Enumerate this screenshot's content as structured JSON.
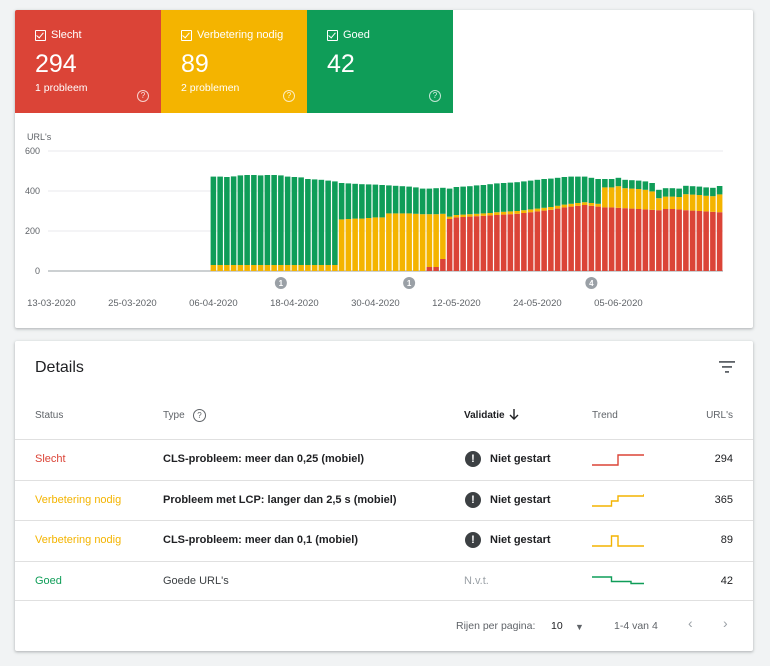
{
  "summary_tiles": [
    {
      "label": "Slecht",
      "count": "294",
      "sub": "1 probleem",
      "color": "#db4437"
    },
    {
      "label": "Verbetering nodig",
      "count": "89",
      "sub": "2 problemen",
      "color": "#f4b400"
    },
    {
      "label": "Goed",
      "count": "42",
      "sub": "",
      "color": "#0f9d58"
    }
  ],
  "chart_data": {
    "type": "bar",
    "stacked": true,
    "ylabel": "URL's",
    "ylim": [
      0,
      600
    ],
    "y_ticks": [
      "600",
      "400",
      "200",
      "0"
    ],
    "x_ticks": [
      "13-03-2020",
      "25-03-2020",
      "06-04-2020",
      "18-04-2020",
      "30-04-2020",
      "12-05-2020",
      "24-05-2020",
      "05-06-2020"
    ],
    "annotations": [
      "1",
      "1",
      "4"
    ],
    "colors": {
      "slecht": "#db4437",
      "verbetering": "#f4b400",
      "goed": "#0f9d58"
    },
    "series_keys": [
      "slecht",
      "verbetering",
      "goed"
    ],
    "first_date": "13-03-2020",
    "empty_days": 24,
    "days": [
      {
        "slecht": 0,
        "verbetering": 30,
        "goed": 442
      },
      {
        "slecht": 0,
        "verbetering": 30,
        "goed": 442
      },
      {
        "slecht": 0,
        "verbetering": 30,
        "goed": 440
      },
      {
        "slecht": 0,
        "verbetering": 30,
        "goed": 443
      },
      {
        "slecht": 0,
        "verbetering": 30,
        "goed": 448
      },
      {
        "slecht": 0,
        "verbetering": 30,
        "goed": 450
      },
      {
        "slecht": 0,
        "verbetering": 30,
        "goed": 450
      },
      {
        "slecht": 0,
        "verbetering": 30,
        "goed": 448
      },
      {
        "slecht": 0,
        "verbetering": 30,
        "goed": 450
      },
      {
        "slecht": 0,
        "verbetering": 30,
        "goed": 450
      },
      {
        "slecht": 0,
        "verbetering": 30,
        "goed": 448
      },
      {
        "slecht": 0,
        "verbetering": 30,
        "goed": 442
      },
      {
        "slecht": 0,
        "verbetering": 30,
        "goed": 440
      },
      {
        "slecht": 0,
        "verbetering": 30,
        "goed": 438
      },
      {
        "slecht": 0,
        "verbetering": 30,
        "goed": 430
      },
      {
        "slecht": 0,
        "verbetering": 30,
        "goed": 428
      },
      {
        "slecht": 0,
        "verbetering": 30,
        "goed": 426
      },
      {
        "slecht": 0,
        "verbetering": 30,
        "goed": 422
      },
      {
        "slecht": 0,
        "verbetering": 30,
        "goed": 418
      },
      {
        "slecht": 0,
        "verbetering": 258,
        "goed": 182
      },
      {
        "slecht": 0,
        "verbetering": 260,
        "goed": 178
      },
      {
        "slecht": 0,
        "verbetering": 262,
        "goed": 174
      },
      {
        "slecht": 0,
        "verbetering": 262,
        "goed": 172
      },
      {
        "slecht": 0,
        "verbetering": 265,
        "goed": 168
      },
      {
        "slecht": 0,
        "verbetering": 268,
        "goed": 164
      },
      {
        "slecht": 0,
        "verbetering": 268,
        "goed": 162
      },
      {
        "slecht": 0,
        "verbetering": 288,
        "goed": 140
      },
      {
        "slecht": 0,
        "verbetering": 288,
        "goed": 138
      },
      {
        "slecht": 0,
        "verbetering": 288,
        "goed": 136
      },
      {
        "slecht": 0,
        "verbetering": 288,
        "goed": 134
      },
      {
        "slecht": 0,
        "verbetering": 286,
        "goed": 132
      },
      {
        "slecht": 0,
        "verbetering": 284,
        "goed": 128
      },
      {
        "slecht": 20,
        "verbetering": 264,
        "goed": 128
      },
      {
        "slecht": 20,
        "verbetering": 264,
        "goed": 130
      },
      {
        "slecht": 60,
        "verbetering": 226,
        "goed": 130
      },
      {
        "slecht": 260,
        "verbetering": 12,
        "goed": 140
      },
      {
        "slecht": 268,
        "verbetering": 12,
        "goed": 140
      },
      {
        "slecht": 270,
        "verbetering": 12,
        "goed": 140
      },
      {
        "slecht": 272,
        "verbetering": 12,
        "goed": 140
      },
      {
        "slecht": 274,
        "verbetering": 12,
        "goed": 142
      },
      {
        "slecht": 276,
        "verbetering": 12,
        "goed": 142
      },
      {
        "slecht": 278,
        "verbetering": 12,
        "goed": 144
      },
      {
        "slecht": 280,
        "verbetering": 14,
        "goed": 144
      },
      {
        "slecht": 282,
        "verbetering": 14,
        "goed": 144
      },
      {
        "slecht": 284,
        "verbetering": 14,
        "goed": 144
      },
      {
        "slecht": 286,
        "verbetering": 14,
        "goed": 144
      },
      {
        "slecht": 290,
        "verbetering": 14,
        "goed": 144
      },
      {
        "slecht": 294,
        "verbetering": 14,
        "goed": 144
      },
      {
        "slecht": 298,
        "verbetering": 14,
        "goed": 144
      },
      {
        "slecht": 302,
        "verbetering": 14,
        "goed": 144
      },
      {
        "slecht": 306,
        "verbetering": 14,
        "goed": 142
      },
      {
        "slecht": 312,
        "verbetering": 14,
        "goed": 140
      },
      {
        "slecht": 318,
        "verbetering": 14,
        "goed": 138
      },
      {
        "slecht": 322,
        "verbetering": 14,
        "goed": 136
      },
      {
        "slecht": 326,
        "verbetering": 14,
        "goed": 132
      },
      {
        "slecht": 330,
        "verbetering": 14,
        "goed": 128
      },
      {
        "slecht": 326,
        "verbetering": 14,
        "goed": 126
      },
      {
        "slecht": 322,
        "verbetering": 14,
        "goed": 124
      },
      {
        "slecht": 318,
        "verbetering": 100,
        "goed": 42
      },
      {
        "slecht": 318,
        "verbetering": 100,
        "goed": 42
      },
      {
        "slecht": 316,
        "verbetering": 108,
        "goed": 42
      },
      {
        "slecht": 314,
        "verbetering": 100,
        "goed": 42
      },
      {
        "slecht": 312,
        "verbetering": 100,
        "goed": 42
      },
      {
        "slecht": 310,
        "verbetering": 100,
        "goed": 42
      },
      {
        "slecht": 308,
        "verbetering": 98,
        "goed": 42
      },
      {
        "slecht": 306,
        "verbetering": 92,
        "goed": 42
      },
      {
        "slecht": 304,
        "verbetering": 60,
        "goed": 42
      },
      {
        "slecht": 310,
        "verbetering": 62,
        "goed": 42
      },
      {
        "slecht": 310,
        "verbetering": 62,
        "goed": 42
      },
      {
        "slecht": 308,
        "verbetering": 62,
        "goed": 42
      },
      {
        "slecht": 304,
        "verbetering": 80,
        "goed": 42
      },
      {
        "slecht": 302,
        "verbetering": 80,
        "goed": 42
      },
      {
        "slecht": 300,
        "verbetering": 80,
        "goed": 42
      },
      {
        "slecht": 298,
        "verbetering": 78,
        "goed": 42
      },
      {
        "slecht": 296,
        "verbetering": 78,
        "goed": 42
      },
      {
        "slecht": 294,
        "verbetering": 89,
        "goed": 42
      }
    ]
  },
  "details": {
    "title": "Details",
    "headers": {
      "status": "Status",
      "type": "Type",
      "validatie": "Validatie",
      "trend": "Trend",
      "urls": "URL's"
    },
    "rows": [
      {
        "status": "Slecht",
        "status_color": "#db4437",
        "type": "CLS-probleem: meer dan 0,25 (mobiel)",
        "type_bold": true,
        "validatie": "Niet gestart",
        "validatie_icon": true,
        "trend_color": "#db4437",
        "trend": [
          0,
          0,
          0,
          0,
          1,
          1,
          1,
          1,
          1
        ],
        "urls": "294"
      },
      {
        "status": "Verbetering nodig",
        "status_color": "#f4b400",
        "type": "Probleem met LCP: langer dan 2,5 s (mobiel)",
        "type_bold": true,
        "validatie": "Niet gestart",
        "validatie_icon": true,
        "trend_color": "#f4b400",
        "trend": [
          0,
          0,
          0,
          0.5,
          1,
          1,
          1,
          1,
          1.2
        ],
        "urls": "365"
      },
      {
        "status": "Verbetering nodig",
        "status_color": "#f4b400",
        "type": "CLS-probleem: meer dan 0,1 (mobiel)",
        "type_bold": true,
        "validatie": "Niet gestart",
        "validatie_icon": true,
        "trend_color": "#f4b400",
        "trend": [
          0,
          0,
          0,
          1,
          0,
          0,
          0,
          0,
          0
        ],
        "urls": "89"
      },
      {
        "status": "Goed",
        "status_color": "#0f9d58",
        "type": "Goede URL's",
        "type_bold": false,
        "validatie": "N.v.t.",
        "validatie_icon": false,
        "trend_color": "#0f9d58",
        "trend": [
          1,
          1,
          1,
          0.55,
          0.55,
          0.55,
          0.35,
          0.35,
          0.35
        ],
        "urls": "42"
      }
    ],
    "pagination": {
      "rows_label": "Rijen per pagina:",
      "rows_value": "10",
      "range": "1-4 van 4"
    }
  }
}
